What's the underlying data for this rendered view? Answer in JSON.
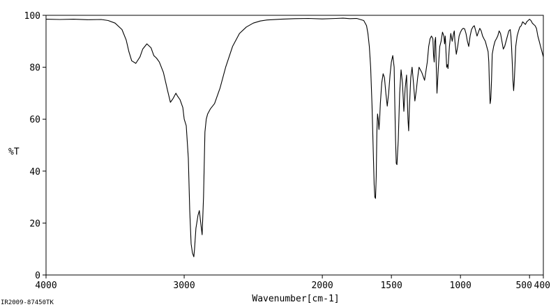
{
  "chart_data": {
    "type": "line",
    "title": "",
    "xlabel": "Wavenumber[cm-1]",
    "ylabel": "%T",
    "xlim": [
      4000,
      400
    ],
    "ylim": [
      0,
      100
    ],
    "x_ticks": [
      4000,
      3000,
      2000,
      1500,
      1000,
      500,
      400
    ],
    "x_tick_labels": [
      "4000",
      "3000",
      "2000",
      "1500",
      "1000",
      "500",
      "400"
    ],
    "y_ticks": [
      0,
      20,
      40,
      60,
      80,
      100
    ],
    "y_tick_labels": [
      "0",
      "20",
      "40",
      "60",
      "80",
      "100"
    ],
    "grid": false,
    "line_color": "#000000",
    "series": [
      {
        "x": [
          4000,
          3900,
          3800,
          3700,
          3600,
          3550,
          3500,
          3450,
          3420,
          3400,
          3380,
          3350,
          3320,
          3300,
          3270,
          3240,
          3220,
          3200,
          3180,
          3150,
          3120,
          3100,
          3080,
          3060,
          3050,
          3030,
          3010,
          3000,
          2985,
          2970,
          2960,
          2950,
          2940,
          2930,
          2925,
          2915,
          2900,
          2890,
          2880,
          2870,
          2860,
          2850,
          2840,
          2830,
          2810,
          2780,
          2740,
          2700,
          2650,
          2600,
          2550,
          2500,
          2450,
          2400,
          2300,
          2200,
          2100,
          2000,
          1900,
          1850,
          1800,
          1750,
          1700,
          1680,
          1670,
          1660,
          1650,
          1640,
          1630,
          1625,
          1620,
          1615,
          1610,
          1605,
          1600,
          1595,
          1590,
          1585,
          1580,
          1570,
          1560,
          1550,
          1540,
          1530,
          1520,
          1510,
          1500,
          1490,
          1480,
          1475,
          1470,
          1465,
          1460,
          1450,
          1440,
          1430,
          1420,
          1410,
          1400,
          1390,
          1380,
          1375,
          1370,
          1360,
          1350,
          1340,
          1330,
          1320,
          1310,
          1300,
          1280,
          1260,
          1240,
          1230,
          1220,
          1210,
          1200,
          1195,
          1190,
          1185,
          1180,
          1175,
          1170,
          1160,
          1150,
          1140,
          1130,
          1120,
          1115,
          1110,
          1105,
          1100,
          1095,
          1090,
          1080,
          1070,
          1060,
          1050,
          1045,
          1040,
          1030,
          1020,
          1010,
          1000,
          990,
          980,
          970,
          960,
          950,
          940,
          930,
          920,
          910,
          900,
          890,
          880,
          870,
          860,
          850,
          840,
          830,
          820,
          810,
          800,
          795,
          790,
          785,
          780,
          775,
          770,
          760,
          750,
          740,
          730,
          720,
          710,
          700,
          690,
          680,
          670,
          660,
          650,
          640,
          635,
          630,
          625,
          620,
          615,
          610,
          600,
          590,
          580,
          570,
          560,
          550,
          540,
          530,
          520,
          510,
          500,
          490,
          480,
          470,
          460,
          450,
          440,
          430,
          420,
          410,
          400
        ],
        "y": [
          98.5,
          98.4,
          98.5,
          98.3,
          98.4,
          98.0,
          97.0,
          94.5,
          90.5,
          86.0,
          82.5,
          81.5,
          84.0,
          87.0,
          89.0,
          87.5,
          84.5,
          83.5,
          82.0,
          78.0,
          71.0,
          66.5,
          68.0,
          70.0,
          69.0,
          67.5,
          64.5,
          60.0,
          57.5,
          45.0,
          25.0,
          12.0,
          8.5,
          7.0,
          10.0,
          18.0,
          23.0,
          24.8,
          20.0,
          15.5,
          30.0,
          55.0,
          60.0,
          62.0,
          64.0,
          66.0,
          72.0,
          80.0,
          88.0,
          93.0,
          95.5,
          97.0,
          97.8,
          98.2,
          98.5,
          98.7,
          98.8,
          98.6,
          98.8,
          98.9,
          98.7,
          98.8,
          98.0,
          96.0,
          93.0,
          88.0,
          80.0,
          65.0,
          45.0,
          35.0,
          30.0,
          29.5,
          38.0,
          55.0,
          62.0,
          60.0,
          56.0,
          60.0,
          66.0,
          74.0,
          77.5,
          76.0,
          70.0,
          65.0,
          70.0,
          77.0,
          82.0,
          84.5,
          80.0,
          65.0,
          52.0,
          43.0,
          42.5,
          52.0,
          70.0,
          79.0,
          74.0,
          63.0,
          72.0,
          77.0,
          60.0,
          55.5,
          64.0,
          76.0,
          80.0,
          74.0,
          67.0,
          71.0,
          76.0,
          80.0,
          78.0,
          75.0,
          82.0,
          88.0,
          91.0,
          92.0,
          91.0,
          85.0,
          82.0,
          90.0,
          91.5,
          80.0,
          70.0,
          80.0,
          88.0,
          90.0,
          93.5,
          92.0,
          89.0,
          92.0,
          86.0,
          80.0,
          81.0,
          79.5,
          88.0,
          93.0,
          90.0,
          93.0,
          94.0,
          90.0,
          85.0,
          88.0,
          92.0,
          93.5,
          94.5,
          95.0,
          94.8,
          93.0,
          90.0,
          88.0,
          92.0,
          94.5,
          95.5,
          96.0,
          94.0,
          92.0,
          93.5,
          95.0,
          94.0,
          92.0,
          91.0,
          90.0,
          88.0,
          86.0,
          82.0,
          72.0,
          66.0,
          68.0,
          75.0,
          85.0,
          88.0,
          90.0,
          91.0,
          92.0,
          94.0,
          93.0,
          90.0,
          87.0,
          88.0,
          90.0,
          92.0,
          94.0,
          94.5,
          92.0,
          88.0,
          82.0,
          75.0,
          71.0,
          75.0,
          88.0,
          92.0,
          94.0,
          95.5,
          96.0,
          97.5,
          97.0,
          96.5,
          97.5,
          98.0,
          98.5,
          98.0,
          97.0,
          96.5,
          96.0,
          95.0,
          92.0,
          90.0,
          88.0,
          86.0,
          84.0
        ]
      }
    ]
  },
  "footer": {
    "code": "IR2009-87450TK"
  }
}
